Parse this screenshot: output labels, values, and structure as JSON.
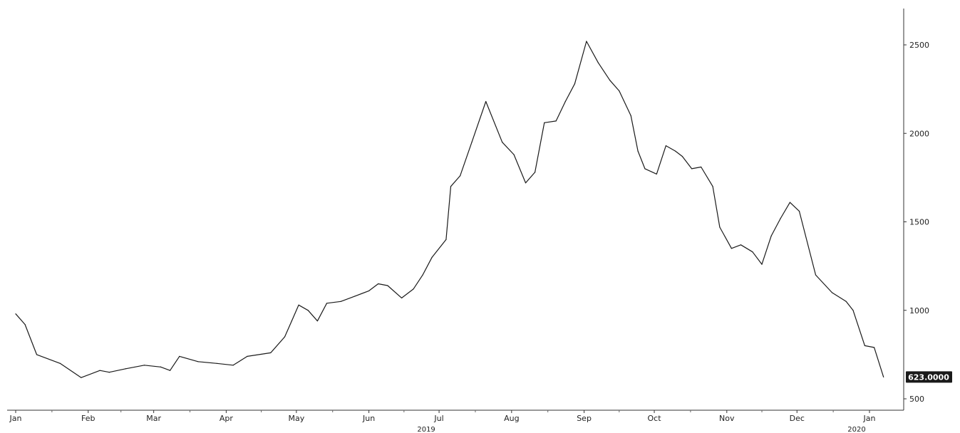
{
  "chart_data": {
    "type": "line",
    "title": "",
    "xlabel": "",
    "ylabel": "",
    "ylim": [
      400,
      2700
    ],
    "xlim": [
      "2019-01-01",
      "2020-01-31"
    ],
    "grid": false,
    "legend": "none",
    "y_axis_position": "right",
    "y_ticks": [
      500,
      1000,
      1500,
      2000,
      2500
    ],
    "y_tick_labels": [
      "500",
      "1000",
      "1500",
      "2000",
      "2500"
    ],
    "x_ticks": [
      {
        "date": "2019-01-01",
        "label": "Jan"
      },
      {
        "date": "2019-02-01",
        "label": "Feb"
      },
      {
        "date": "2019-03-01",
        "label": "Mar"
      },
      {
        "date": "2019-04-01",
        "label": "Apr"
      },
      {
        "date": "2019-05-01",
        "label": "May"
      },
      {
        "date": "2019-06-01",
        "label": "Jun"
      },
      {
        "date": "2019-07-01",
        "label": "Jul"
      },
      {
        "date": "2019-08-01",
        "label": "Aug"
      },
      {
        "date": "2019-09-01",
        "label": "Sep"
      },
      {
        "date": "2019-10-01",
        "label": "Oct"
      },
      {
        "date": "2019-11-01",
        "label": "Nov"
      },
      {
        "date": "2019-12-01",
        "label": "Dec"
      },
      {
        "date": "2020-01-01",
        "label": "Jan"
      }
    ],
    "year_labels": [
      {
        "date": "2019-07-01",
        "label": "2019"
      },
      {
        "date": "2020-01-01",
        "label": "2020"
      }
    ],
    "last_value_label": "623.0000",
    "line_color": "#1a1a1a",
    "series": [
      {
        "x": [
          "2019-01-01",
          "2019-01-05",
          "2019-01-10",
          "2019-01-20",
          "2019-01-29",
          "2019-02-06",
          "2019-02-10",
          "2019-02-17",
          "2019-02-25",
          "2019-03-04",
          "2019-03-08",
          "2019-03-12",
          "2019-03-20",
          "2019-03-28",
          "2019-04-04",
          "2019-04-10",
          "2019-04-20",
          "2019-04-26",
          "2019-04-29",
          "2019-05-02",
          "2019-05-06",
          "2019-05-10",
          "2019-05-14",
          "2019-05-20",
          "2019-05-26",
          "2019-06-01",
          "2019-06-05",
          "2019-06-09",
          "2019-06-15",
          "2019-06-20",
          "2019-06-24",
          "2019-06-28",
          "2019-07-04",
          "2019-07-06",
          "2019-07-10",
          "2019-07-15",
          "2019-07-21",
          "2019-07-28",
          "2019-08-02",
          "2019-08-07",
          "2019-08-11",
          "2019-08-15",
          "2019-08-20",
          "2019-08-24",
          "2019-08-28",
          "2019-09-02",
          "2019-09-07",
          "2019-09-12",
          "2019-09-16",
          "2019-09-21",
          "2019-09-24",
          "2019-09-27",
          "2019-10-02",
          "2019-10-06",
          "2019-10-10",
          "2019-10-13",
          "2019-10-17",
          "2019-10-21",
          "2019-10-26",
          "2019-10-29",
          "2019-11-03",
          "2019-11-07",
          "2019-11-12",
          "2019-11-16",
          "2019-11-20",
          "2019-11-24",
          "2019-11-28",
          "2019-12-02",
          "2019-12-09",
          "2019-12-16",
          "2019-12-22",
          "2019-12-25",
          "2019-12-30",
          "2020-01-03",
          "2020-01-07"
        ],
        "values": [
          980,
          920,
          750,
          700,
          620,
          660,
          650,
          670,
          690,
          680,
          660,
          740,
          710,
          700,
          690,
          740,
          760,
          850,
          940,
          1030,
          1000,
          940,
          1040,
          1050,
          1080,
          1110,
          1150,
          1140,
          1070,
          1120,
          1200,
          1300,
          1400,
          1700,
          1760,
          1950,
          2180,
          1950,
          1880,
          1720,
          1780,
          2060,
          2070,
          2180,
          2280,
          2520,
          2400,
          2300,
          2240,
          2100,
          1900,
          1800,
          1770,
          1930,
          1900,
          1870,
          1800,
          1810,
          1700,
          1470,
          1350,
          1370,
          1330,
          1260,
          1420,
          1520,
          1610,
          1560,
          1200,
          1100,
          1050,
          1000,
          800,
          790,
          623
        ]
      }
    ]
  }
}
